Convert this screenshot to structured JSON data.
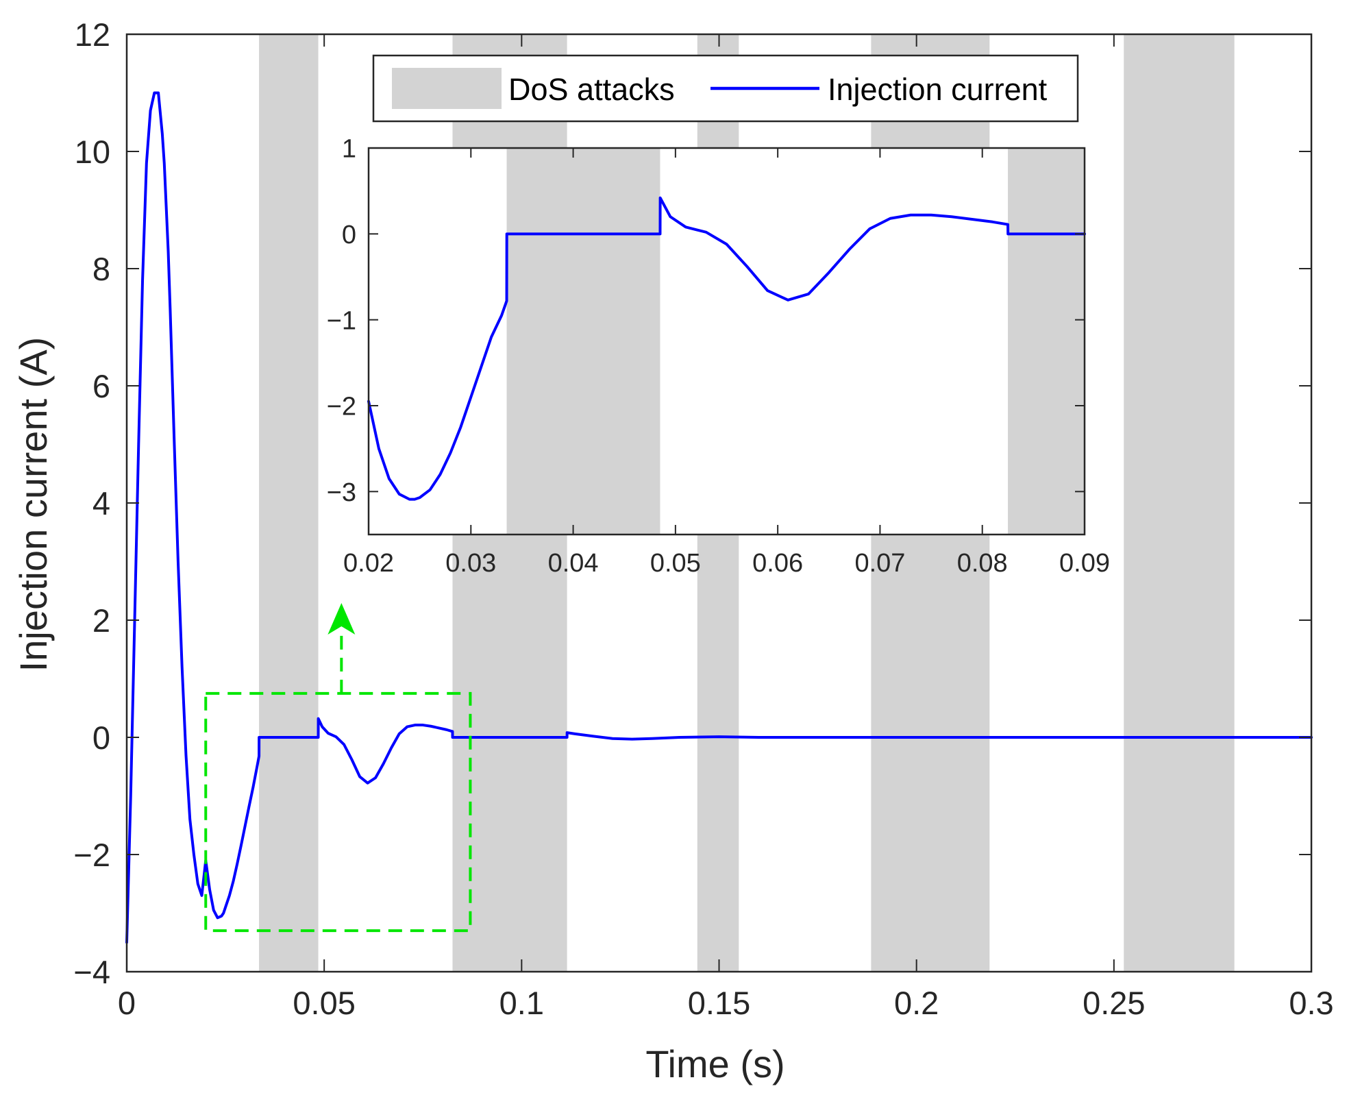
{
  "chart_data": [
    {
      "type": "line",
      "panel": "main",
      "xlabel": "Time (s)",
      "ylabel": "Injection current (A)",
      "xlim": [
        0,
        0.3
      ],
      "ylim": [
        -4,
        12
      ],
      "xticks": [
        0,
        0.05,
        0.1,
        0.15,
        0.2,
        0.25,
        0.3
      ],
      "xtick_labels": [
        "0",
        "0.05",
        "0.1",
        "0.15",
        "0.2",
        "0.25",
        "0.3"
      ],
      "yticks": [
        -4,
        -2,
        0,
        2,
        4,
        6,
        8,
        10,
        12
      ],
      "ytick_labels": [
        "−4",
        "−2",
        "0",
        "2",
        "4",
        "6",
        "8",
        "10",
        "12"
      ],
      "shaded_intervals": {
        "name": "DoS attacks",
        "color": "#d3d3d3",
        "intervals": [
          [
            0.0335,
            0.0485
          ],
          [
            0.0825,
            0.1115
          ],
          [
            0.1445,
            0.155
          ],
          [
            0.1885,
            0.2185
          ],
          [
            0.2525,
            0.2805
          ]
        ]
      },
      "series": [
        {
          "name": "Injection current",
          "color": "#0000ff",
          "x": [
            0,
            0.001,
            0.002,
            0.003,
            0.004,
            0.005,
            0.006,
            0.007,
            0.008,
            0.009,
            0.0095,
            0.0105,
            0.011,
            0.012,
            0.013,
            0.014,
            0.015,
            0.016,
            0.017,
            0.018,
            0.019,
            0.02,
            0.021,
            0.022,
            0.023,
            0.024,
            0.0245,
            0.025,
            0.026,
            0.027,
            0.028,
            0.029,
            0.03,
            0.031,
            0.032,
            0.033,
            0.0335,
            0.03351,
            0.0485,
            0.04851,
            0.0495,
            0.051,
            0.053,
            0.055,
            0.057,
            0.059,
            0.061,
            0.063,
            0.065,
            0.067,
            0.069,
            0.071,
            0.073,
            0.075,
            0.077,
            0.079,
            0.081,
            0.0825,
            0.08251,
            0.1115,
            0.11151,
            0.1135,
            0.118,
            0.123,
            0.128,
            0.133,
            0.14,
            0.15,
            0.16,
            0.17,
            0.18,
            0.2,
            0.25,
            0.3
          ],
          "y": [
            -3.5,
            -1.0,
            2.0,
            5.0,
            7.8,
            9.8,
            10.7,
            11.0,
            11.0,
            10.3,
            9.8,
            8.3,
            7.3,
            5.1,
            3.0,
            1.2,
            -0.3,
            -1.4,
            -2.0,
            -2.5,
            -2.7,
            -2.1,
            -2.6,
            -2.95,
            -3.08,
            -3.05,
            -3.0,
            -2.9,
            -2.7,
            -2.45,
            -2.15,
            -1.83,
            -1.5,
            -1.17,
            -0.85,
            -0.5,
            -0.32,
            0,
            0,
            0.32,
            0.18,
            0.07,
            0.01,
            -0.12,
            -0.38,
            -0.67,
            -0.78,
            -0.69,
            -0.45,
            -0.18,
            0.06,
            0.18,
            0.21,
            0.21,
            0.19,
            0.16,
            0.13,
            0.1,
            0,
            0,
            0.08,
            0.06,
            0.02,
            -0.02,
            -0.03,
            -0.02,
            0.0,
            0.01,
            0.0,
            0.0,
            0.0,
            0.0,
            0.0,
            0.0
          ]
        }
      ],
      "legend": {
        "position": "top",
        "entries": [
          "DoS attacks",
          "Injection current"
        ]
      },
      "annotations": [
        {
          "type": "dashed-rectangle",
          "color": "#00e600",
          "x_range": [
            0.02,
            0.087
          ],
          "y_range": [
            -3.3,
            0.75
          ]
        },
        {
          "type": "dashed-arrow",
          "color": "#00e600",
          "direction": "up"
        }
      ]
    },
    {
      "type": "line",
      "panel": "inset",
      "xlim": [
        0.02,
        0.09
      ],
      "ylim": [
        -3.5,
        1
      ],
      "xticks": [
        0.02,
        0.03,
        0.04,
        0.05,
        0.06,
        0.07,
        0.08,
        0.09
      ],
      "xtick_labels": [
        "0.02",
        "0.03",
        "0.04",
        "0.05",
        "0.06",
        "0.07",
        "0.08",
        "0.09"
      ],
      "yticks": [
        -3,
        -2,
        -1,
        0,
        1
      ],
      "ytick_labels": [
        "−3",
        "−2",
        "−1",
        "0",
        "1"
      ],
      "shaded_intervals": {
        "name": "DoS attacks",
        "color": "#d3d3d3",
        "intervals": [
          [
            0.0335,
            0.0485
          ],
          [
            0.0825,
            0.09
          ]
        ]
      },
      "series": [
        {
          "name": "Injection current",
          "color": "#0000ff",
          "x": [
            0.02,
            0.021,
            0.022,
            0.023,
            0.024,
            0.0245,
            0.025,
            0.026,
            0.027,
            0.028,
            0.029,
            0.03,
            0.031,
            0.032,
            0.033,
            0.0335,
            0.03351,
            0.0485,
            0.04851,
            0.0495,
            0.051,
            0.053,
            0.055,
            0.057,
            0.059,
            0.061,
            0.063,
            0.065,
            0.067,
            0.069,
            0.071,
            0.073,
            0.075,
            0.077,
            0.079,
            0.081,
            0.0825,
            0.08251,
            0.09
          ],
          "y": [
            -1.95,
            -2.5,
            -2.85,
            -3.03,
            -3.09,
            -3.09,
            -3.07,
            -2.98,
            -2.8,
            -2.55,
            -2.25,
            -1.9,
            -1.55,
            -1.2,
            -0.95,
            -0.78,
            0,
            0,
            0.42,
            0.2,
            0.08,
            0.02,
            -0.12,
            -0.38,
            -0.66,
            -0.77,
            -0.7,
            -0.45,
            -0.18,
            0.06,
            0.18,
            0.22,
            0.22,
            0.2,
            0.17,
            0.14,
            0.11,
            0,
            0
          ]
        }
      ]
    }
  ]
}
